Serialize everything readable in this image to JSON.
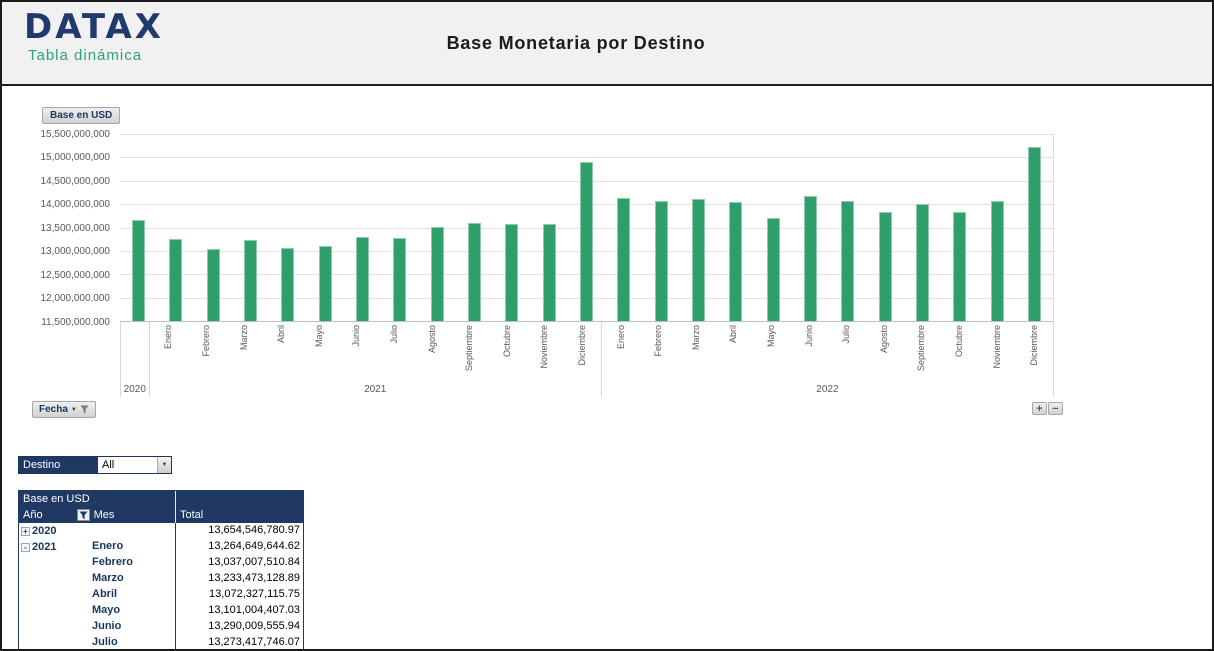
{
  "colors": {
    "accent_navy": "#1F3864",
    "bar_green": "#2F9E6B",
    "logo_teal": "#2EA17E"
  },
  "header": {
    "logo": "DATAX",
    "logo_subtitle": "Tabla dinámica",
    "title": "Base Monetaria por Destino"
  },
  "chart": {
    "field_button": "Base en USD",
    "axis_button": "Fecha",
    "expand_button": "+",
    "collapse_button": "−"
  },
  "chart_data": {
    "type": "bar",
    "title": "Base Monetaria por Destino",
    "ylabel": "Base en USD",
    "xlabel": "Fecha",
    "ylim": [
      11500000000,
      15500000000
    ],
    "y_tick_step": 500000000,
    "grid": true,
    "bar_color": "#2F9E6B",
    "y_ticks": [
      "15,500,000,000",
      "15,000,000,000",
      "14,500,000,000",
      "14,000,000,000",
      "13,500,000,000",
      "13,000,000,000",
      "12,500,000,000",
      "12,000,000,000",
      "11,500,000,000"
    ],
    "groups": [
      {
        "year": "2020",
        "months": [
          ""
        ],
        "values": [
          13654546780.97
        ]
      },
      {
        "year": "2021",
        "months": [
          "Enero",
          "Febrero",
          "Marzo",
          "Abril",
          "Mayo",
          "Junio",
          "Julio",
          "Agosto",
          "Septiembre",
          "Octubre",
          "Noviembre",
          "Diciembre"
        ],
        "values": [
          13264649644.62,
          13037007510.84,
          13233473128.89,
          13072327115.75,
          13101004407.03,
          13290009555.94,
          13273417746.07,
          13510000000,
          13590000000,
          13570000000,
          13580000000,
          14900000000
        ]
      },
      {
        "year": "2022",
        "months": [
          "Enero",
          "Febrero",
          "Marzo",
          "Abril",
          "Mayo",
          "Junio",
          "Julio",
          "Agosto",
          "Septiembre",
          "Octubre",
          "Noviembre",
          "Diciembre"
        ],
        "values": [
          14130000000,
          14060000000,
          14110000000,
          14040000000,
          13700000000,
          14180000000,
          14070000000,
          13840000000,
          14000000000,
          13830000000,
          14060000000,
          15230000000
        ]
      }
    ]
  },
  "filter": {
    "label": "Destino",
    "value": "All"
  },
  "pivot": {
    "value_header": "Base en USD",
    "row_header_1": "Año",
    "row_header_2": "Mes",
    "total_header": "Total",
    "rows": [
      {
        "expand": "+",
        "year": "2020",
        "month": "",
        "total": "13,654,546,780.97"
      },
      {
        "expand": "-",
        "year": "2021",
        "month": "Enero",
        "total": "13,264,649,644.62"
      },
      {
        "expand": "",
        "year": "",
        "month": "Febrero",
        "total": "13,037,007,510.84"
      },
      {
        "expand": "",
        "year": "",
        "month": "Marzo",
        "total": "13,233,473,128.89"
      },
      {
        "expand": "",
        "year": "",
        "month": "Abril",
        "total": "13,072,327,115.75"
      },
      {
        "expand": "",
        "year": "",
        "month": "Mayo",
        "total": "13,101,004,407.03"
      },
      {
        "expand": "",
        "year": "",
        "month": "Junio",
        "total": "13,290,009,555.94"
      },
      {
        "expand": "",
        "year": "",
        "month": "Julio",
        "total": "13,273,417,746.07"
      }
    ]
  }
}
